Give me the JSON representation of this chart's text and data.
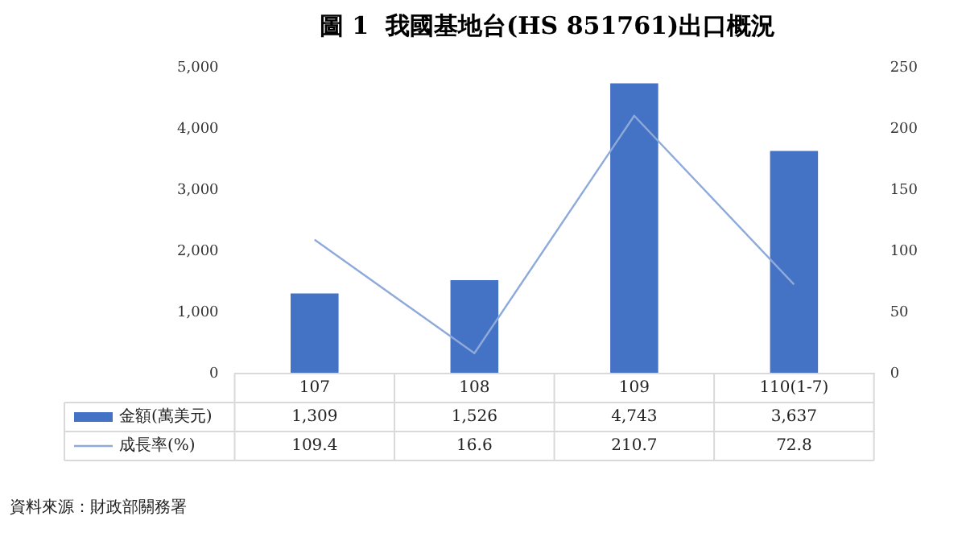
{
  "chart_data": {
    "type": "bar",
    "title": "圖 1  我國基地台(HS 851761)出口概況",
    "categories": [
      "107",
      "108",
      "109",
      "110(1-7)"
    ],
    "series": [
      {
        "name": "金額(萬美元)",
        "color": "#4472c4",
        "values": [
          1309,
          1526,
          4743,
          3637
        ],
        "value_labels": [
          "1,309",
          "1,526",
          "4,743",
          "3,637"
        ]
      },
      {
        "name": "成長率(%)",
        "type": "line",
        "axis": "y2",
        "color": "#8eaadb",
        "values": [
          109.4,
          16.6,
          210.7,
          72.8
        ]
      }
    ],
    "ylim": [
      0,
      5000
    ],
    "yticks": [
      0,
      {
        "value": 1000,
        "label": "1,000"
      },
      {
        "value": 2000,
        "label": "2,000"
      },
      {
        "value": 3000,
        "label": "3,000"
      },
      {
        "value": 4000,
        "label": "4,000"
      },
      {
        "value": 5000,
        "label": "5,000"
      }
    ],
    "y2lim": [
      0,
      250
    ],
    "y2ticks": [
      0,
      50,
      100,
      150,
      200,
      250
    ],
    "data_labels": true,
    "legend": "bottom",
    "grid": false,
    "marker": "none",
    "line_style": "solid",
    "annotations": [
      "資料來源：財政部關務署"
    ]
  }
}
